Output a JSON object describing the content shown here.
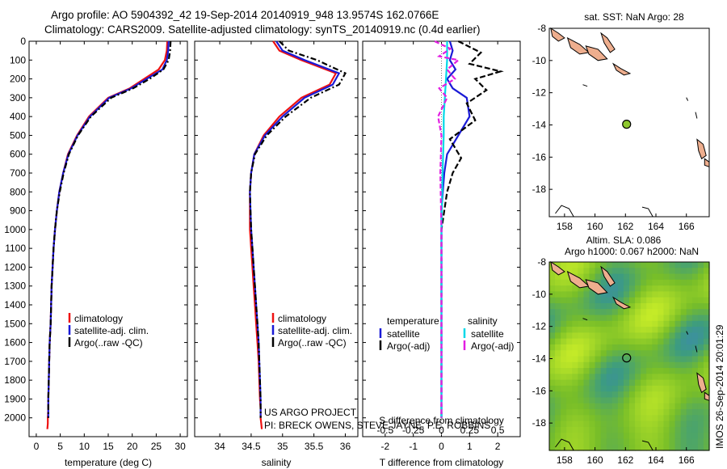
{
  "header": {
    "line1": "Argo profile: AO 5904392_42 19-Sep-2014 20140919_948 13.9574S 162.0766E",
    "line2": "Climatology: CARS2009. Satellite-adjusted climatology: synTS_20140919.nc (0.4d earlier)"
  },
  "colors": {
    "climatology": "#ee1111",
    "satellite": "#1a1ad6",
    "argo": "#000000",
    "salinity_satellite": "#00d8e8",
    "salinity_argo": "#e21ee2",
    "land": "#eeae8e",
    "float_marker": "#8ec82e"
  },
  "chart_data": [
    {
      "type": "line",
      "name": "temperature",
      "xlabel": "temperature (deg C)",
      "ylabel": "",
      "xlim": [
        -1.5,
        31.5
      ],
      "ylim": [
        2100,
        0
      ],
      "x_ticks": [
        0,
        5,
        10,
        15,
        20,
        25,
        30
      ],
      "y_ticks": [
        0,
        100,
        200,
        300,
        400,
        500,
        600,
        700,
        800,
        900,
        1000,
        1100,
        1200,
        1300,
        1400,
        1500,
        1600,
        1700,
        1800,
        1900,
        2000
      ],
      "legend": [
        "climatology",
        "satellite-adj. clim.",
        "Argo(..raw -QC)"
      ],
      "legend_position": "lower-left",
      "series": [
        {
          "name": "climatology",
          "x": [
            27.3,
            27.2,
            26.8,
            25.5,
            22.5,
            19.5,
            15.0,
            11.0,
            8.5,
            6.6,
            5.6,
            4.8,
            4.3,
            3.9,
            3.6,
            3.4,
            3.2,
            3.1,
            3.0,
            2.8,
            2.7,
            2.6,
            2.5,
            2.5,
            2.4,
            2.4,
            2.3
          ],
          "y": [
            0,
            50,
            100,
            150,
            200,
            250,
            300,
            400,
            500,
            600,
            700,
            800,
            900,
            1000,
            1100,
            1200,
            1300,
            1400,
            1500,
            1600,
            1700,
            1800,
            1900,
            1950,
            2000,
            2030,
            2060
          ]
        },
        {
          "name": "satellite-adj. clim.",
          "x": [
            27.6,
            27.5,
            27.2,
            26.3,
            23.0,
            19.8,
            15.2,
            11.2,
            8.6,
            6.7,
            5.6,
            4.8,
            4.3,
            3.9,
            3.6,
            3.4,
            3.2,
            3.1,
            3.0,
            2.8,
            2.7,
            2.6,
            2.5,
            2.5
          ],
          "y": [
            0,
            50,
            100,
            150,
            200,
            250,
            300,
            400,
            500,
            600,
            700,
            800,
            900,
            1000,
            1100,
            1200,
            1300,
            1400,
            1500,
            1600,
            1700,
            1800,
            1900,
            2000
          ]
        },
        {
          "name": "Argo(..raw -QC)",
          "x": [
            28.0,
            27.9,
            27.6,
            26.5,
            23.6,
            20.2,
            15.6,
            11.4,
            8.7,
            6.8,
            5.7,
            4.9,
            4.3,
            3.9,
            3.6,
            3.4,
            3.2,
            3.1,
            3.0,
            2.8,
            2.7,
            2.6,
            2.5,
            2.5
          ],
          "y": [
            0,
            50,
            100,
            150,
            200,
            250,
            300,
            400,
            500,
            600,
            700,
            800,
            900,
            1000,
            1100,
            1200,
            1300,
            1400,
            1500,
            1600,
            1700,
            1800,
            1900,
            2000
          ]
        }
      ]
    },
    {
      "type": "line",
      "name": "salinity",
      "xlabel": "salinity",
      "xlim": [
        33.6,
        36.2
      ],
      "ylim": [
        2100,
        0
      ],
      "x_ticks": [
        34,
        34.5,
        35,
        35.5,
        36
      ],
      "legend": [
        "climatology",
        "satellite-adj. clim.",
        "Argo(..raw -QC)"
      ],
      "legend_position": "lower-left",
      "annotation": [
        "US ARGO PROJECT",
        "PI: BRECK OWENS, STEVE JAYNE, P.E. ROBBINS"
      ],
      "series": [
        {
          "name": "climatology",
          "x": [
            34.85,
            34.95,
            35.3,
            35.85,
            35.75,
            35.3,
            34.95,
            34.7,
            34.55,
            34.5,
            34.48,
            34.48,
            34.48,
            34.5,
            34.52,
            34.54,
            34.56,
            34.58,
            34.6,
            34.62,
            34.63,
            34.64,
            34.65,
            34.65,
            34.66,
            34.67
          ],
          "y": [
            0,
            50,
            100,
            170,
            230,
            300,
            400,
            500,
            600,
            700,
            800,
            900,
            1000,
            1100,
            1200,
            1300,
            1400,
            1500,
            1600,
            1700,
            1800,
            1900,
            1950,
            2000,
            2030,
            2060
          ]
        },
        {
          "name": "satellite-adj. clim.",
          "x": [
            34.9,
            35.0,
            35.35,
            35.9,
            35.8,
            35.35,
            35.0,
            34.72,
            34.55,
            34.5,
            34.48,
            34.49,
            34.5,
            34.52,
            34.54,
            34.56,
            34.58,
            34.6,
            34.62,
            34.63,
            34.64,
            34.65,
            34.65
          ],
          "y": [
            0,
            50,
            100,
            170,
            230,
            300,
            400,
            500,
            600,
            700,
            800,
            900,
            1000,
            1100,
            1200,
            1300,
            1400,
            1500,
            1600,
            1700,
            1800,
            1900,
            2000
          ]
        },
        {
          "name": "Argo(..raw -QC)",
          "x": [
            34.95,
            35.1,
            35.55,
            36.0,
            35.9,
            35.45,
            35.05,
            34.75,
            34.56,
            34.5,
            34.48,
            34.49,
            34.5,
            34.52,
            34.54,
            34.56,
            34.58,
            34.6,
            34.62,
            34.63,
            34.64,
            34.65,
            34.65
          ],
          "y": [
            0,
            50,
            100,
            170,
            230,
            300,
            400,
            500,
            600,
            700,
            800,
            900,
            1000,
            1100,
            1200,
            1300,
            1400,
            1500,
            1600,
            1700,
            1800,
            1900,
            2000
          ]
        }
      ]
    },
    {
      "type": "line",
      "name": "difference-from-climatology",
      "xlabel": "T difference from climatology",
      "x2label": "S difference from climatology",
      "xlim": [
        -2.8,
        2.8
      ],
      "x2lim": [
        -0.7,
        0.7
      ],
      "ylim": [
        2100,
        0
      ],
      "x_ticks": [
        -2,
        -1,
        0,
        1,
        2
      ],
      "x2_ticks": [
        "-0.5",
        "-0.25",
        "0",
        "0.25",
        "0.5"
      ],
      "legend_titles": [
        "temperature",
        "salinity"
      ],
      "legend": [
        "satellite",
        "Argo(-adj)",
        "satellite",
        "Argo(-adj)"
      ],
      "legend_position": "lower-center",
      "series": [
        {
          "name": "satellite",
          "group": "temperature",
          "x": [
            0.3,
            0.4,
            0.3,
            0.5,
            0.2,
            0.4,
            0.9,
            1.0,
            0.6,
            0.2,
            0.1,
            0.05,
            0.0,
            0.0,
            0.0,
            0.0,
            0.0,
            0.0
          ],
          "y": [
            0,
            50,
            100,
            150,
            200,
            250,
            300,
            400,
            500,
            600,
            700,
            800,
            900,
            1000,
            1200,
            1500,
            1800,
            2000
          ]
        },
        {
          "name": "Argo(-adj)",
          "group": "temperature",
          "x": [
            0.6,
            1.4,
            1.0,
            2.1,
            1.2,
            1.6,
            0.9,
            1.2,
            0.3,
            0.7,
            0.4,
            0.2,
            0.1,
            0.0,
            0.0,
            0.0,
            0.0
          ],
          "y": [
            0,
            60,
            120,
            160,
            200,
            260,
            330,
            420,
            520,
            620,
            700,
            800,
            900,
            1000,
            1300,
            1700,
            2000
          ]
        },
        {
          "name": "satellite",
          "group": "salinity",
          "x": [
            0.05,
            0.05,
            0.04,
            0.03,
            0.02,
            0.02,
            0.01,
            0.0,
            0.0,
            0.0,
            0.0
          ],
          "y": [
            0,
            100,
            200,
            300,
            400,
            500,
            700,
            1000,
            1400,
            1800,
            2000
          ]
        },
        {
          "name": "Argo(-adj)",
          "group": "salinity",
          "x": [
            -0.06,
            0.08,
            -0.02,
            0.15,
            0.05,
            0.12,
            -0.02,
            0.05,
            -0.03,
            0.0,
            -0.01,
            0.0,
            0.0
          ],
          "y": [
            0,
            40,
            80,
            100,
            150,
            200,
            250,
            300,
            400,
            500,
            700,
            1000,
            2000
          ]
        }
      ]
    },
    {
      "type": "scatter",
      "name": "map-sst",
      "title": "sat. SST: NaN Argo: 28",
      "xlim": [
        157,
        167.5
      ],
      "ylim": [
        -19.7,
        -8
      ],
      "x_ticks": [
        158,
        160,
        162,
        164,
        166
      ],
      "y_ticks": [
        -8,
        -10,
        -12,
        -14,
        -16,
        -18
      ],
      "float_position": {
        "lon": 162.0766,
        "lat": -13.9574
      }
    },
    {
      "type": "heatmap",
      "name": "map-sla",
      "title_line1": "Altim. SLA: 0.086",
      "title_line2": "Argo h1000: 0.067 h2000: NaN",
      "xlim": [
        157,
        167.5
      ],
      "ylim": [
        -19.7,
        -8
      ],
      "x_ticks": [
        158,
        160,
        162,
        164,
        166
      ],
      "y_ticks": [
        -8,
        -10,
        -12,
        -14,
        -16,
        -18
      ],
      "float_position": {
        "lon": 162.0766,
        "lat": -13.9574
      }
    }
  ],
  "footer": {
    "stamp": "IMOS 26-Sep-2014 20:01:29"
  }
}
